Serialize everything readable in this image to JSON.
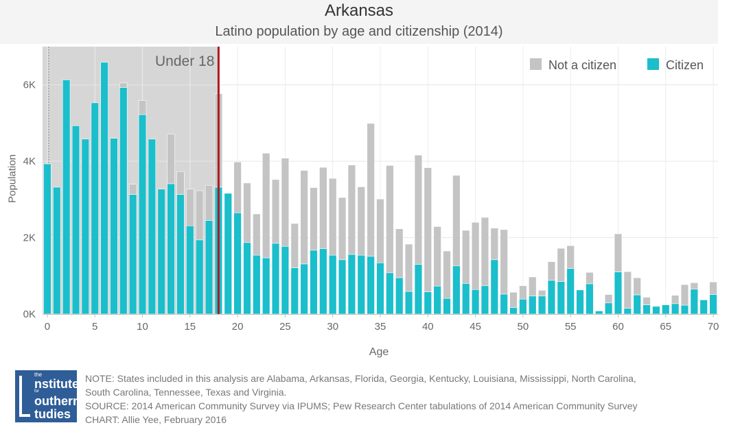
{
  "header": {
    "title": "Arkansas",
    "subtitle": "Latino population by age and citizenship (2014)"
  },
  "chart_data": {
    "type": "bar",
    "stacked": true,
    "x_label": "Age",
    "y_label": "Population",
    "x_ticks": [
      0,
      5,
      10,
      15,
      20,
      25,
      30,
      35,
      40,
      45,
      50,
      55,
      60,
      65,
      70
    ],
    "y_ticks": [
      {
        "value": 0,
        "label": "0K"
      },
      {
        "value": 2000,
        "label": "2K"
      },
      {
        "value": 4000,
        "label": "4K"
      },
      {
        "value": 6000,
        "label": "6K"
      }
    ],
    "y_range": [
      0,
      7000
    ],
    "x_range": [
      -0.5,
      70.5
    ],
    "grid": true,
    "legend": {
      "position": "top-right"
    },
    "region": {
      "label": "Under 18",
      "x_start": -0.5,
      "x_end": 18,
      "color": "#d6d6d6"
    },
    "marker_line": {
      "x": 18,
      "color": "#b0171f"
    },
    "colors": {
      "citizen": "#1bbecb",
      "not_citizen": "#c4c4c4"
    },
    "series": [
      {
        "name": "Citizen",
        "values": [
          3930,
          3320,
          6130,
          4930,
          4580,
          5530,
          6590,
          4600,
          5930,
          3130,
          5220,
          4580,
          3270,
          3410,
          3130,
          2310,
          1940,
          2450,
          3320,
          3160,
          2650,
          1870,
          1540,
          1470,
          1850,
          1770,
          1210,
          1310,
          1670,
          1710,
          1540,
          1420,
          1560,
          1540,
          1510,
          1340,
          1080,
          950,
          590,
          1300,
          580,
          730,
          410,
          1260,
          800,
          640,
          740,
          1420,
          520,
          170,
          390,
          470,
          470,
          880,
          850,
          1190,
          630,
          790,
          80,
          290,
          1100,
          150,
          500,
          240,
          200,
          240,
          270,
          230,
          650,
          370,
          510
        ]
      },
      {
        "name": "Not a citizen",
        "values": [
          0,
          0,
          0,
          0,
          0,
          0,
          0,
          0,
          120,
          270,
          370,
          0,
          0,
          1300,
          600,
          960,
          1290,
          920,
          2450,
          0,
          1330,
          1560,
          1080,
          2740,
          1670,
          2310,
          1160,
          2450,
          1640,
          2130,
          2010,
          1630,
          2340,
          1790,
          3480,
          1670,
          2810,
          1280,
          1240,
          2860,
          3250,
          1560,
          1240,
          2370,
          1390,
          1760,
          1790,
          830,
          1690,
          400,
          350,
          500,
          150,
          490,
          870,
          600,
          0,
          300,
          0,
          220,
          1000,
          960,
          450,
          200,
          0,
          0,
          220,
          540,
          170,
          0,
          330
        ]
      }
    ]
  },
  "footer": {
    "logo": {
      "line1": "the",
      "line2": "nstitute",
      "line3": "for",
      "line4": "outhern",
      "line5": "tudies"
    },
    "note_line1": "NOTE: States included in this analysis are Alabama, Arkansas, Florida, Georgia, Kentucky, Louisiana, Mississippi, North Carolina,",
    "note_line2": "South Carolina, Tennessee, Texas and Virginia.",
    "source": "SOURCE: 2014 American Community Survey via IPUMS; Pew Research Center tabulations of 2014 American Community Survey",
    "credit": "CHART: Allie Yee, February 2016"
  }
}
